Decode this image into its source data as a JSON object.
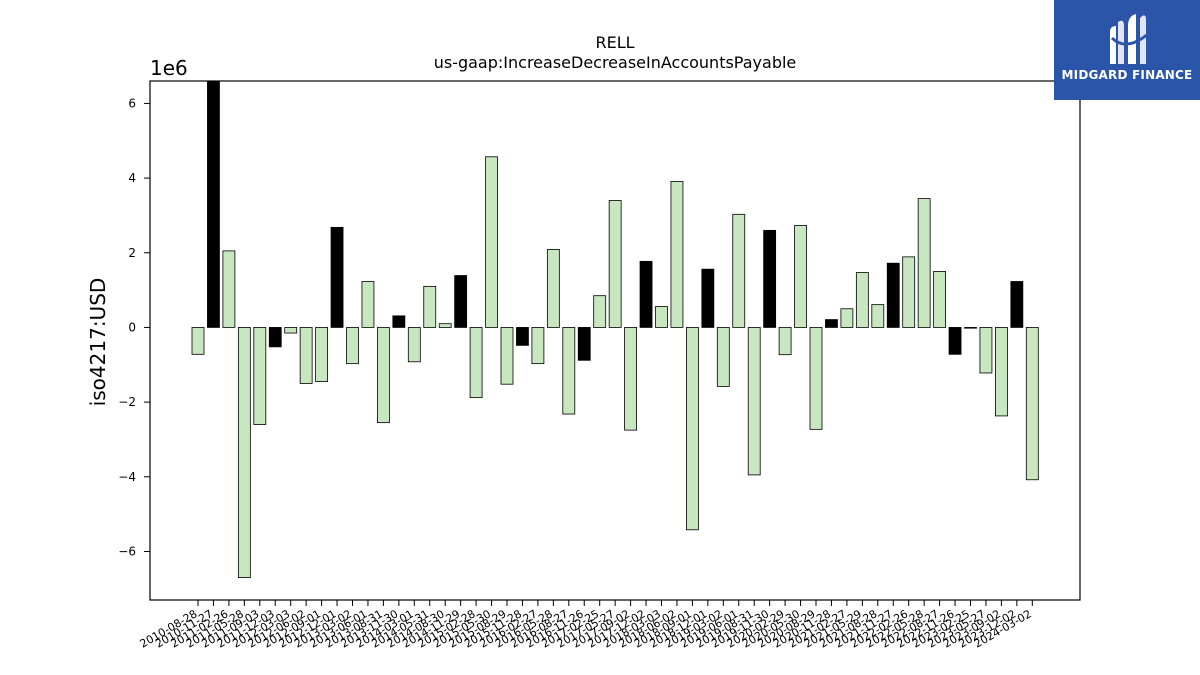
{
  "brand": {
    "name": "MIDGARD FINANCE",
    "bg_color": "#2a55a8"
  },
  "chart_data": {
    "type": "bar",
    "title": "RELL",
    "subtitle": "us-gaap:IncreaseDecreaseInAccountsPayable",
    "ylabel": "iso4217:USD",
    "xlabel": "",
    "y_multiplier": "1e6",
    "ylim": [
      -7.3,
      6.6
    ],
    "yticks": [
      -6,
      -4,
      -2,
      0,
      2,
      4,
      6
    ],
    "ytick_labels": [
      "−6",
      "−4",
      "−2",
      "0",
      "2",
      "4",
      "6"
    ],
    "grid": false,
    "colors": {
      "quarterly": "#c8e6c0",
      "annual": "#000000",
      "edge": "#000000"
    },
    "categories": [
      "2010-08-28",
      "2010-11-27",
      "2011-02-26",
      "2011-05-28",
      "2011-09-03",
      "2011-12-03",
      "2012-03-03",
      "2012-06-02",
      "2012-09-01",
      "2012-12-01",
      "2013-03-02",
      "2013-06-01",
      "2013-08-31",
      "2013-11-30",
      "2014-03-01",
      "2014-05-31",
      "2014-08-30",
      "2014-11-29",
      "2015-02-28",
      "2015-05-30",
      "2015-08-29",
      "2015-11-28",
      "2016-02-27",
      "2016-05-28",
      "2016-08-27",
      "2016-11-26",
      "2017-02-25",
      "2017-05-27",
      "2017-09-02",
      "2017-12-02",
      "2018-03-03",
      "2018-06-02",
      "2018-09-01",
      "2018-12-01",
      "2019-03-02",
      "2019-06-01",
      "2019-08-31",
      "2019-11-30",
      "2020-02-29",
      "2020-05-30",
      "2020-08-29",
      "2020-11-28",
      "2021-02-27",
      "2021-05-29",
      "2021-08-28",
      "2021-11-27",
      "2022-02-26",
      "2022-05-28",
      "2022-08-27",
      "2022-11-26",
      "2023-02-25",
      "2023-05-27",
      "2023-09-02",
      "2023-12-02",
      "2024-03-02"
    ],
    "values": [
      -0.72,
      6.6,
      2.05,
      -6.7,
      -2.6,
      -0.52,
      -0.15,
      -1.5,
      -1.45,
      2.68,
      -0.97,
      1.23,
      -2.55,
      0.31,
      -0.92,
      1.1,
      0.1,
      1.39,
      -1.88,
      4.57,
      -1.52,
      -0.48,
      -0.97,
      2.09,
      -2.32,
      -0.88,
      0.85,
      3.4,
      -2.75,
      1.77,
      0.56,
      3.91,
      -5.42,
      1.56,
      -1.58,
      3.03,
      -3.95,
      2.6,
      -0.73,
      2.73,
      -2.73,
      0.21,
      0.5,
      1.47,
      0.61,
      1.72,
      1.89,
      3.45,
      1.5,
      -0.72,
      -0.02,
      -1.22,
      -2.37,
      1.23,
      -4.08
    ],
    "annual": [
      false,
      true,
      false,
      false,
      false,
      true,
      false,
      false,
      false,
      true,
      false,
      false,
      false,
      true,
      false,
      false,
      false,
      true,
      false,
      false,
      false,
      true,
      false,
      false,
      false,
      true,
      false,
      false,
      false,
      true,
      false,
      false,
      false,
      true,
      false,
      false,
      false,
      true,
      false,
      false,
      false,
      true,
      false,
      false,
      false,
      true,
      false,
      false,
      false,
      true,
      false,
      false,
      false,
      true,
      false
    ]
  }
}
